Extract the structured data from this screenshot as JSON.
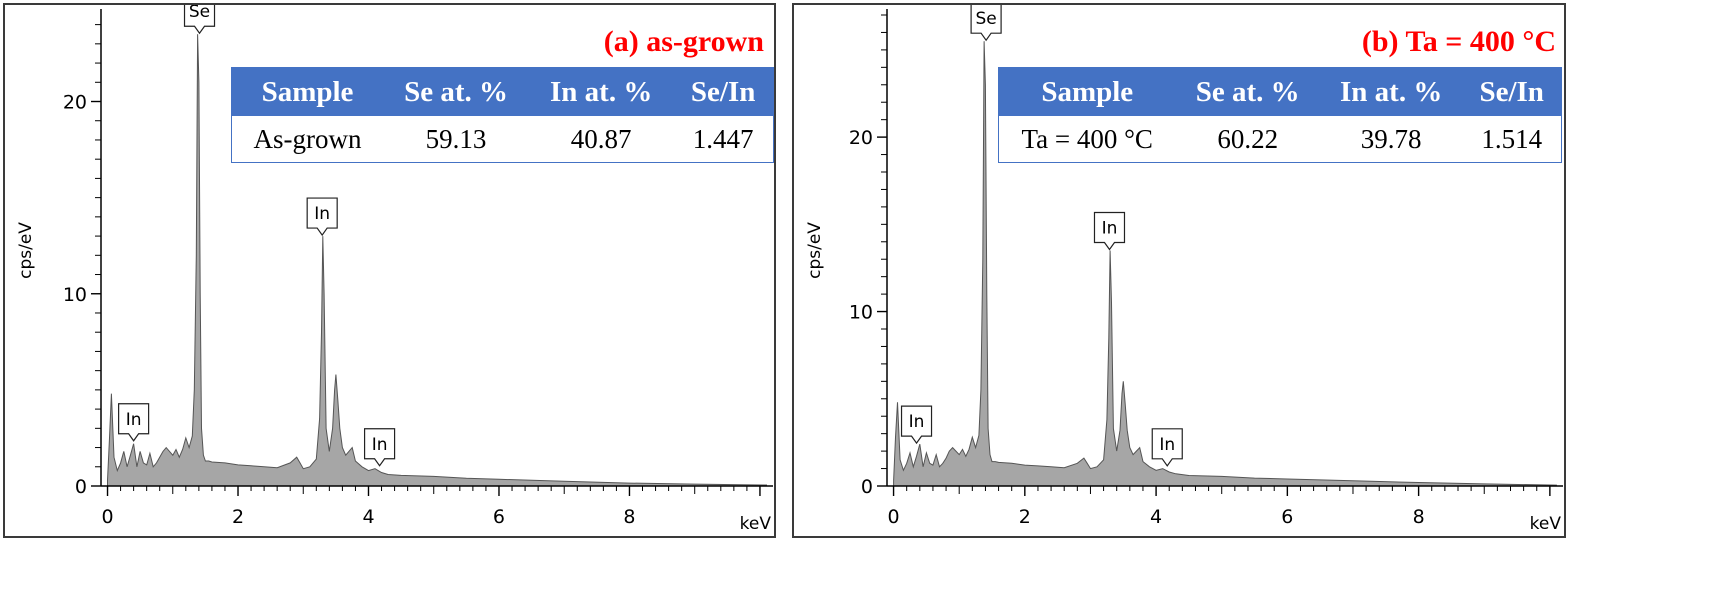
{
  "panels": [
    {
      "title": "(a) as-grown",
      "table": {
        "headers": [
          "Sample",
          "Se at. %",
          "In at. %",
          "Se/In"
        ],
        "row": [
          "As-grown",
          "59.13",
          "40.87",
          "1.447"
        ]
      }
    },
    {
      "title": "(b) Ta = 400 °C",
      "table": {
        "headers": [
          "Sample",
          "Se at. %",
          "In at. %",
          "Se/In"
        ],
        "row": [
          "Ta = 400 °C",
          "60.22",
          "39.78",
          "1.514"
        ]
      }
    }
  ],
  "chart_data": [
    {
      "type": "area",
      "title": "(a) as-grown",
      "xlabel": "keV",
      "ylabel": "cps/eV",
      "xlim": [
        -0.1,
        10.2
      ],
      "ylim": [
        0,
        24.5
      ],
      "xticks": [
        0,
        2,
        4,
        6,
        8
      ],
      "yticks": [
        0,
        10,
        20
      ],
      "fill_color": "#a6a6a6",
      "x": [
        0.0,
        0.03,
        0.06,
        0.1,
        0.15,
        0.2,
        0.25,
        0.3,
        0.35,
        0.4,
        0.45,
        0.5,
        0.55,
        0.6,
        0.65,
        0.7,
        0.75,
        0.8,
        0.85,
        0.9,
        0.95,
        1.0,
        1.05,
        1.1,
        1.15,
        1.2,
        1.25,
        1.3,
        1.33,
        1.36,
        1.38,
        1.4,
        1.42,
        1.44,
        1.47,
        1.5,
        1.55,
        1.6,
        1.8,
        2.0,
        2.2,
        2.4,
        2.6,
        2.8,
        2.9,
        2.95,
        3.0,
        3.1,
        3.2,
        3.25,
        3.28,
        3.3,
        3.32,
        3.35,
        3.4,
        3.45,
        3.48,
        3.5,
        3.53,
        3.56,
        3.6,
        3.65,
        3.7,
        3.75,
        3.8,
        3.9,
        4.0,
        4.1,
        4.2,
        4.3,
        4.5,
        5.0,
        5.5,
        6.0,
        7.0,
        8.0,
        9.0,
        10.1
      ],
      "series": [
        {
          "values": [
            0.3,
            2.5,
            4.8,
            1.5,
            0.8,
            1.2,
            1.8,
            1.0,
            1.6,
            2.2,
            1.0,
            1.8,
            1.2,
            1.1,
            1.7,
            1.0,
            1.2,
            1.5,
            1.8,
            2.0,
            1.8,
            1.6,
            1.9,
            1.5,
            1.9,
            2.5,
            2.0,
            2.6,
            5.0,
            12.0,
            23.5,
            21.0,
            10.0,
            3.0,
            1.6,
            1.3,
            1.3,
            1.25,
            1.2,
            1.1,
            1.05,
            1.0,
            0.95,
            1.2,
            1.5,
            1.2,
            0.9,
            1.0,
            1.4,
            3.5,
            8.0,
            13.0,
            10.0,
            3.0,
            1.8,
            3.0,
            5.0,
            5.8,
            4.5,
            3.0,
            2.0,
            1.6,
            1.8,
            2.0,
            1.3,
            1.0,
            0.8,
            0.9,
            0.7,
            0.6,
            0.55,
            0.5,
            0.4,
            0.35,
            0.25,
            0.15,
            0.1,
            0.05
          ]
        }
      ],
      "peak_labels": [
        {
          "text": "Se",
          "x": 1.41,
          "y": 23.5
        },
        {
          "text": "In",
          "x": 3.29,
          "y": 13.0
        },
        {
          "text": "In",
          "x": 0.4,
          "y": 2.3
        },
        {
          "text": "In",
          "x": 4.17,
          "y": 1.0
        }
      ]
    },
    {
      "type": "area",
      "title": "(b) Ta = 400 °C",
      "xlabel": "keV",
      "ylabel": "cps/eV",
      "xlim": [
        -0.1,
        10.2
      ],
      "ylim": [
        0,
        27
      ],
      "xticks": [
        0,
        2,
        4,
        6,
        8
      ],
      "yticks": [
        0,
        10,
        20
      ],
      "fill_color": "#a6a6a6",
      "x": [
        0.0,
        0.03,
        0.06,
        0.1,
        0.15,
        0.2,
        0.25,
        0.3,
        0.35,
        0.4,
        0.45,
        0.5,
        0.55,
        0.6,
        0.65,
        0.7,
        0.75,
        0.8,
        0.85,
        0.9,
        0.95,
        1.0,
        1.05,
        1.1,
        1.15,
        1.2,
        1.25,
        1.3,
        1.33,
        1.36,
        1.38,
        1.4,
        1.42,
        1.44,
        1.47,
        1.5,
        1.55,
        1.6,
        1.8,
        2.0,
        2.2,
        2.4,
        2.6,
        2.8,
        2.9,
        2.95,
        3.0,
        3.1,
        3.2,
        3.25,
        3.28,
        3.3,
        3.32,
        3.35,
        3.4,
        3.45,
        3.48,
        3.5,
        3.53,
        3.56,
        3.6,
        3.65,
        3.7,
        3.75,
        3.8,
        3.9,
        4.0,
        4.1,
        4.2,
        4.3,
        4.5,
        5.0,
        5.5,
        6.0,
        7.0,
        8.0,
        9.0,
        10.1
      ],
      "series": [
        {
          "values": [
            0.3,
            2.8,
            4.8,
            1.5,
            0.9,
            1.3,
            1.9,
            1.1,
            1.7,
            2.4,
            1.1,
            1.9,
            1.3,
            1.2,
            1.8,
            1.1,
            1.3,
            1.6,
            2.0,
            2.2,
            2.0,
            1.8,
            2.1,
            1.7,
            2.1,
            2.8,
            2.2,
            2.9,
            5.5,
            13.0,
            25.5,
            23.0,
            11.0,
            3.3,
            1.8,
            1.4,
            1.4,
            1.35,
            1.3,
            1.2,
            1.15,
            1.1,
            1.05,
            1.3,
            1.6,
            1.3,
            1.0,
            1.1,
            1.5,
            3.8,
            8.5,
            13.5,
            10.5,
            3.3,
            2.0,
            3.2,
            5.3,
            6.0,
            4.7,
            3.2,
            2.2,
            1.8,
            2.0,
            2.2,
            1.4,
            1.1,
            0.9,
            1.0,
            0.8,
            0.7,
            0.6,
            0.55,
            0.45,
            0.4,
            0.3,
            0.2,
            0.12,
            0.05
          ]
        }
      ],
      "peak_labels": [
        {
          "text": "Se",
          "x": 1.41,
          "y": 25.5
        },
        {
          "text": "In",
          "x": 3.29,
          "y": 13.5
        },
        {
          "text": "In",
          "x": 0.35,
          "y": 2.4
        },
        {
          "text": "In",
          "x": 4.17,
          "y": 1.1
        }
      ]
    }
  ]
}
